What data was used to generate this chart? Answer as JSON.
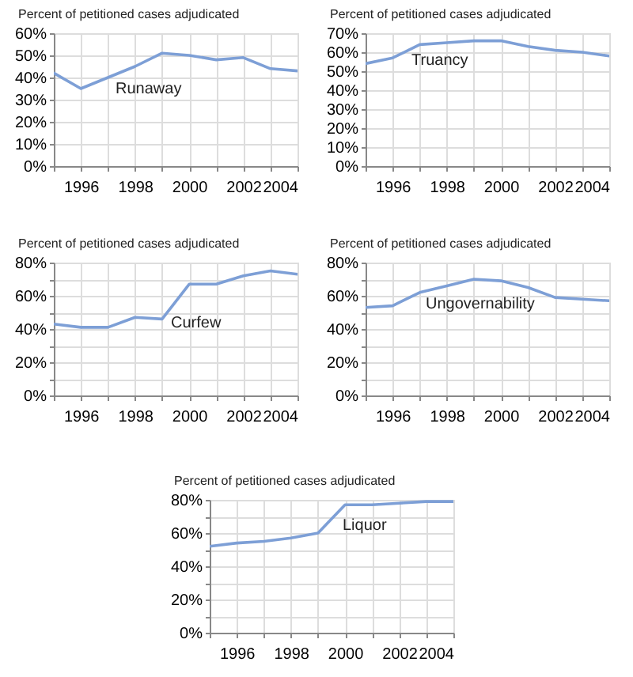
{
  "chart_data": [
    {
      "type": "line",
      "ylabel": "Percent of petitioned cases adjudicated",
      "x": [
        1995,
        1996,
        1997,
        1998,
        1999,
        2000,
        2001,
        2002,
        2003,
        2004
      ],
      "series": [
        {
          "name": "Runaway",
          "color": "#7d9fd6",
          "values": [
            42,
            35,
            40,
            45,
            51,
            50,
            48,
            49,
            44,
            43
          ]
        }
      ],
      "xlim": [
        1995,
        2004
      ],
      "ylim": [
        0,
        60
      ],
      "xticks": [
        {
          "value": 1995,
          "label": null
        },
        1996,
        {
          "value": 1997,
          "label": null
        },
        1998,
        {
          "value": 1999,
          "label": null
        },
        2000,
        {
          "value": 2001,
          "label": null
        },
        2002,
        {
          "value": 2003,
          "label": null
        },
        2004
      ],
      "yticks": [
        {
          "value": 0,
          "label": "0%"
        },
        {
          "value": 10,
          "label": "10%"
        },
        {
          "value": 20,
          "label": "20%"
        },
        {
          "value": 30,
          "label": "30%"
        },
        {
          "value": 40,
          "label": "40%"
        },
        {
          "value": 50,
          "label": "50%"
        },
        {
          "value": 60,
          "label": "60%"
        }
      ],
      "grid": true
    },
    {
      "type": "line",
      "ylabel": "Percent of petitioned cases adjudicated",
      "x": [
        1995,
        1996,
        1997,
        1998,
        1999,
        2000,
        2001,
        2002,
        2003,
        2004
      ],
      "series": [
        {
          "name": "Truancy",
          "color": "#7d9fd6",
          "values": [
            54,
            57,
            64,
            65,
            66,
            66,
            63,
            61,
            60,
            58
          ]
        }
      ],
      "xlim": [
        1995,
        2004
      ],
      "ylim": [
        0,
        70
      ],
      "xticks": [
        {
          "value": 1995,
          "label": null
        },
        1996,
        {
          "value": 1997,
          "label": null
        },
        1998,
        {
          "value": 1999,
          "label": null
        },
        2000,
        {
          "value": 2001,
          "label": null
        },
        2002,
        {
          "value": 2003,
          "label": null
        },
        2004
      ],
      "yticks": [
        {
          "value": 0,
          "label": "0%"
        },
        {
          "value": 10,
          "label": "10%"
        },
        {
          "value": 20,
          "label": "20%"
        },
        {
          "value": 30,
          "label": "30%"
        },
        {
          "value": 40,
          "label": "40%"
        },
        {
          "value": 50,
          "label": "50%"
        },
        {
          "value": 60,
          "label": "60%"
        },
        {
          "value": 70,
          "label": "70%"
        }
      ],
      "grid": true
    },
    {
      "type": "line",
      "ylabel": "Percent of petitioned cases adjudicated",
      "x": [
        1995,
        1996,
        1997,
        1998,
        1999,
        2000,
        2001,
        2002,
        2003,
        2004
      ],
      "series": [
        {
          "name": "Curfew",
          "color": "#7d9fd6",
          "values": [
            43,
            41,
            41,
            47,
            46,
            67,
            67,
            72,
            75,
            73
          ]
        }
      ],
      "xlim": [
        1995,
        2004
      ],
      "ylim": [
        0,
        80
      ],
      "xticks": [
        {
          "value": 1995,
          "label": null
        },
        1996,
        {
          "value": 1997,
          "label": null
        },
        1998,
        {
          "value": 1999,
          "label": null
        },
        2000,
        {
          "value": 2001,
          "label": null
        },
        2002,
        {
          "value": 2003,
          "label": null
        },
        2004
      ],
      "yticks": [
        {
          "value": 0,
          "label": "0%"
        },
        {
          "value": 10,
          "label": null
        },
        {
          "value": 20,
          "label": "20%"
        },
        {
          "value": 30,
          "label": null
        },
        {
          "value": 40,
          "label": "40%"
        },
        {
          "value": 50,
          "label": null
        },
        {
          "value": 60,
          "label": "60%"
        },
        {
          "value": 70,
          "label": null
        },
        {
          "value": 80,
          "label": "80%"
        }
      ],
      "grid": true
    },
    {
      "type": "line",
      "ylabel": "Percent of petitioned cases adjudicated",
      "x": [
        1995,
        1996,
        1997,
        1998,
        1999,
        2000,
        2001,
        2002,
        2003,
        2004
      ],
      "series": [
        {
          "name": "Ungovernability",
          "color": "#7d9fd6",
          "values": [
            53,
            54,
            62,
            66,
            70,
            69,
            65,
            59,
            58,
            57
          ]
        }
      ],
      "xlim": [
        1995,
        2004
      ],
      "ylim": [
        0,
        80
      ],
      "xticks": [
        {
          "value": 1995,
          "label": null
        },
        1996,
        {
          "value": 1997,
          "label": null
        },
        1998,
        {
          "value": 1999,
          "label": null
        },
        2000,
        {
          "value": 2001,
          "label": null
        },
        2002,
        {
          "value": 2003,
          "label": null
        },
        2004
      ],
      "yticks": [
        {
          "value": 0,
          "label": "0%"
        },
        {
          "value": 10,
          "label": null
        },
        {
          "value": 20,
          "label": "20%"
        },
        {
          "value": 30,
          "label": null
        },
        {
          "value": 40,
          "label": "40%"
        },
        {
          "value": 50,
          "label": null
        },
        {
          "value": 60,
          "label": "60%"
        },
        {
          "value": 70,
          "label": null
        },
        {
          "value": 80,
          "label": "80%"
        }
      ],
      "grid": true
    },
    {
      "type": "line",
      "ylabel": "Percent of petitioned cases adjudicated",
      "x": [
        1995,
        1996,
        1997,
        1998,
        1999,
        2000,
        2001,
        2002,
        2003,
        2004
      ],
      "series": [
        {
          "name": "Liquor",
          "color": "#7d9fd6",
          "values": [
            52,
            54,
            55,
            57,
            60,
            77,
            77,
            78,
            79,
            79
          ]
        }
      ],
      "xlim": [
        1995,
        2004
      ],
      "ylim": [
        0,
        80
      ],
      "xticks": [
        {
          "value": 1995,
          "label": null
        },
        1996,
        {
          "value": 1997,
          "label": null
        },
        1998,
        {
          "value": 1999,
          "label": null
        },
        2000,
        {
          "value": 2001,
          "label": null
        },
        2002,
        {
          "value": 2003,
          "label": null
        },
        2004
      ],
      "yticks": [
        {
          "value": 0,
          "label": "0%"
        },
        {
          "value": 10,
          "label": null
        },
        {
          "value": 20,
          "label": "20%"
        },
        {
          "value": 30,
          "label": null
        },
        {
          "value": 40,
          "label": "40%"
        },
        {
          "value": 50,
          "label": null
        },
        {
          "value": 60,
          "label": "60%"
        },
        {
          "value": 70,
          "label": null
        },
        {
          "value": 80,
          "label": "80%"
        }
      ],
      "grid": true
    }
  ]
}
